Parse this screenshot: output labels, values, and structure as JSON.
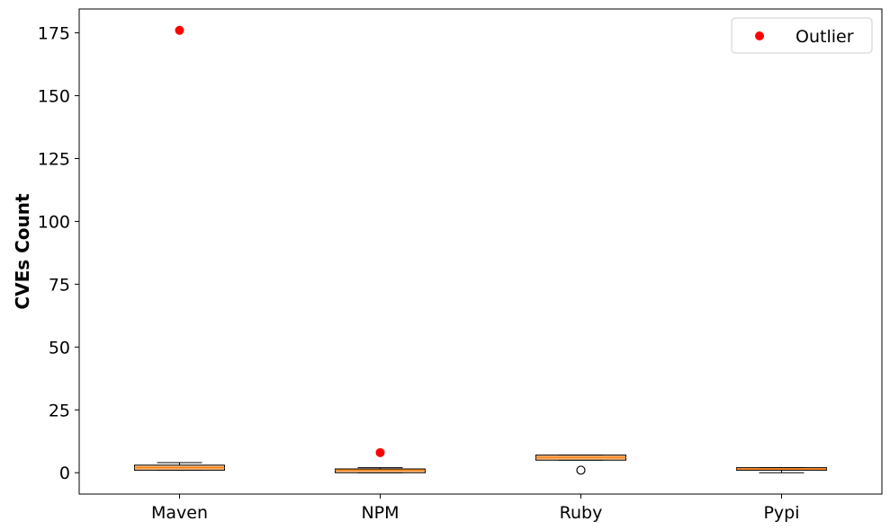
{
  "chart_data": {
    "type": "box",
    "title": "",
    "xlabel": "",
    "ylabel": "CVEs Count",
    "ylim": [
      -8.5,
      184.5
    ],
    "yticks": [
      0,
      25,
      50,
      75,
      100,
      125,
      150,
      175
    ],
    "grid": false,
    "legend": {
      "placement": "top-right",
      "entries": [
        {
          "label": "Outlier",
          "color": "#ff0000",
          "marker": "circle"
        }
      ]
    },
    "box_color": "#ffbd80",
    "median_color": "#ff7f0e",
    "outlier_color": "#ff0000",
    "categories": [
      "Maven",
      "NPM",
      "Ruby",
      "Pypi"
    ],
    "boxes": [
      {
        "category": "Maven",
        "whisker_low": 1,
        "q1": 1,
        "median": 2,
        "q3": 3,
        "whisker_high": 4,
        "fliers": [],
        "outliers": [
          176
        ]
      },
      {
        "category": "NPM",
        "whisker_low": 0,
        "q1": 0,
        "median": 1,
        "q3": 1.5,
        "whisker_high": 2,
        "fliers": [],
        "outliers": [
          8
        ]
      },
      {
        "category": "Ruby",
        "whisker_low": 5,
        "q1": 5,
        "median": 6,
        "q3": 7,
        "whisker_high": 7,
        "fliers": [
          1
        ],
        "outliers": []
      },
      {
        "category": "Pypi",
        "whisker_low": 0,
        "q1": 1,
        "median": 1.5,
        "q3": 2,
        "whisker_high": 2,
        "fliers": [],
        "outliers": []
      }
    ]
  }
}
